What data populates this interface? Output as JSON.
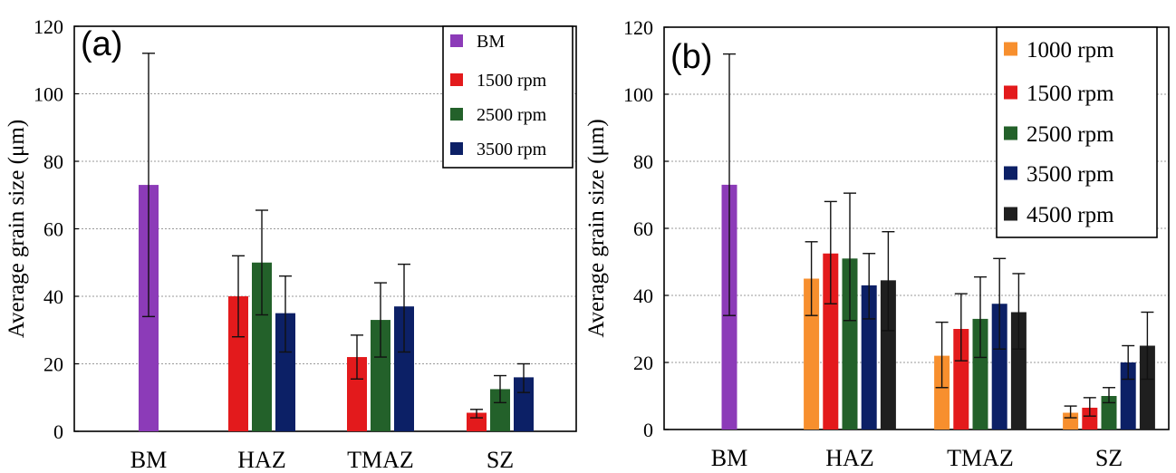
{
  "chart_data": [
    {
      "panel_label": "(a)",
      "type": "bar",
      "ylabel": "Average grain size (μm)",
      "categories": [
        "BM",
        "HAZ",
        "TMAZ",
        "SZ"
      ],
      "ylim": [
        0,
        120
      ],
      "yticks": [
        0,
        20,
        40,
        60,
        80,
        100,
        120
      ],
      "grid": "horizontal dotted",
      "legend_position": "top-right",
      "series": [
        {
          "name": "BM",
          "color": "#8c3bb8",
          "values": [
            73,
            null,
            null,
            null
          ],
          "error": [
            [
              34,
              112
            ],
            null,
            null,
            null
          ]
        },
        {
          "name": "1500 rpm",
          "color": "#e31a1c",
          "values": [
            null,
            40,
            22,
            5.5
          ],
          "error": [
            null,
            [
              28,
              52
            ],
            [
              15.5,
              28.5
            ],
            [
              4,
              6.5
            ]
          ]
        },
        {
          "name": "2500 rpm",
          "color": "#23612a",
          "values": [
            null,
            50,
            33,
            12.5
          ],
          "error": [
            null,
            [
              34.5,
              65.5
            ],
            [
              22,
              44
            ],
            [
              8.5,
              16.5
            ]
          ]
        },
        {
          "name": "3500 rpm",
          "color": "#0c2066",
          "values": [
            null,
            35,
            37,
            16
          ],
          "error": [
            null,
            [
              23.5,
              46
            ],
            [
              23.5,
              49.5
            ],
            [
              11.5,
              20
            ]
          ]
        }
      ]
    },
    {
      "panel_label": "(b)",
      "type": "bar",
      "ylabel": "Average grain size (μm)",
      "categories": [
        "BM",
        "HAZ",
        "TMAZ",
        "SZ"
      ],
      "ylim": [
        0,
        120
      ],
      "yticks": [
        0,
        20,
        40,
        60,
        80,
        100,
        120
      ],
      "grid": "horizontal dotted",
      "legend_position": "top-right",
      "series": [
        {
          "name": "BM",
          "color": "#8c3bb8",
          "legend": false,
          "values": [
            73,
            null,
            null,
            null
          ],
          "error": [
            [
              34,
              112
            ],
            null,
            null,
            null
          ]
        },
        {
          "name": "1000 rpm",
          "color": "#f78f2e",
          "values": [
            null,
            45,
            22,
            5
          ],
          "error": [
            null,
            [
              34,
              56
            ],
            [
              12.5,
              32
            ],
            [
              3.5,
              7
            ]
          ]
        },
        {
          "name": "1500 rpm",
          "color": "#e31a1c",
          "values": [
            null,
            52.5,
            30,
            6.5
          ],
          "error": [
            null,
            [
              37.5,
              68
            ],
            [
              20.5,
              40.5
            ],
            [
              4,
              9.5
            ]
          ]
        },
        {
          "name": "2500 rpm",
          "color": "#23612a",
          "values": [
            null,
            51,
            33,
            10
          ],
          "error": [
            null,
            [
              32.5,
              70.5
            ],
            [
              21.5,
              45.5
            ],
            [
              8,
              12.5
            ]
          ]
        },
        {
          "name": "3500 rpm",
          "color": "#0c2066",
          "values": [
            null,
            43,
            37.5,
            20
          ],
          "error": [
            null,
            [
              33,
              52.5
            ],
            [
              24,
              51
            ],
            [
              15,
              25
            ]
          ]
        },
        {
          "name": "4500 rpm",
          "color": "#1f1f1f",
          "values": [
            null,
            44.5,
            35,
            25
          ],
          "error": [
            null,
            [
              29.5,
              59
            ],
            [
              24,
              46.5
            ],
            [
              15,
              35
            ]
          ]
        }
      ]
    }
  ]
}
